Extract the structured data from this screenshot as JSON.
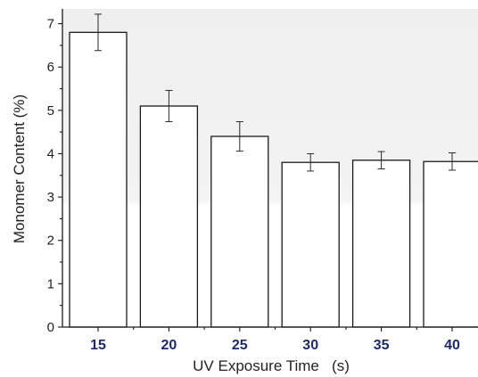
{
  "chart_data": {
    "type": "bar",
    "categories": [
      "15",
      "20",
      "25",
      "30",
      "35",
      "40"
    ],
    "values": [
      6.8,
      5.1,
      4.4,
      3.8,
      3.85,
      3.82
    ],
    "errors": [
      0.42,
      0.36,
      0.34,
      0.2,
      0.2,
      0.2
    ],
    "xlabel": "UV Exposure Time   (s)",
    "ylabel": "Monomer Content (%)",
    "ylim": [
      0,
      7.3
    ],
    "yticks": [
      0,
      1,
      2,
      3,
      4,
      5,
      6,
      7
    ],
    "grid": false,
    "legend": "none",
    "colors": {
      "bar_fill": "#ffffff",
      "bar_stroke": "#1a1a1a",
      "x_tick_label": "#1f2a6b",
      "background_top": "#f0f0f0",
      "background_bottom": "#ffffff"
    }
  }
}
